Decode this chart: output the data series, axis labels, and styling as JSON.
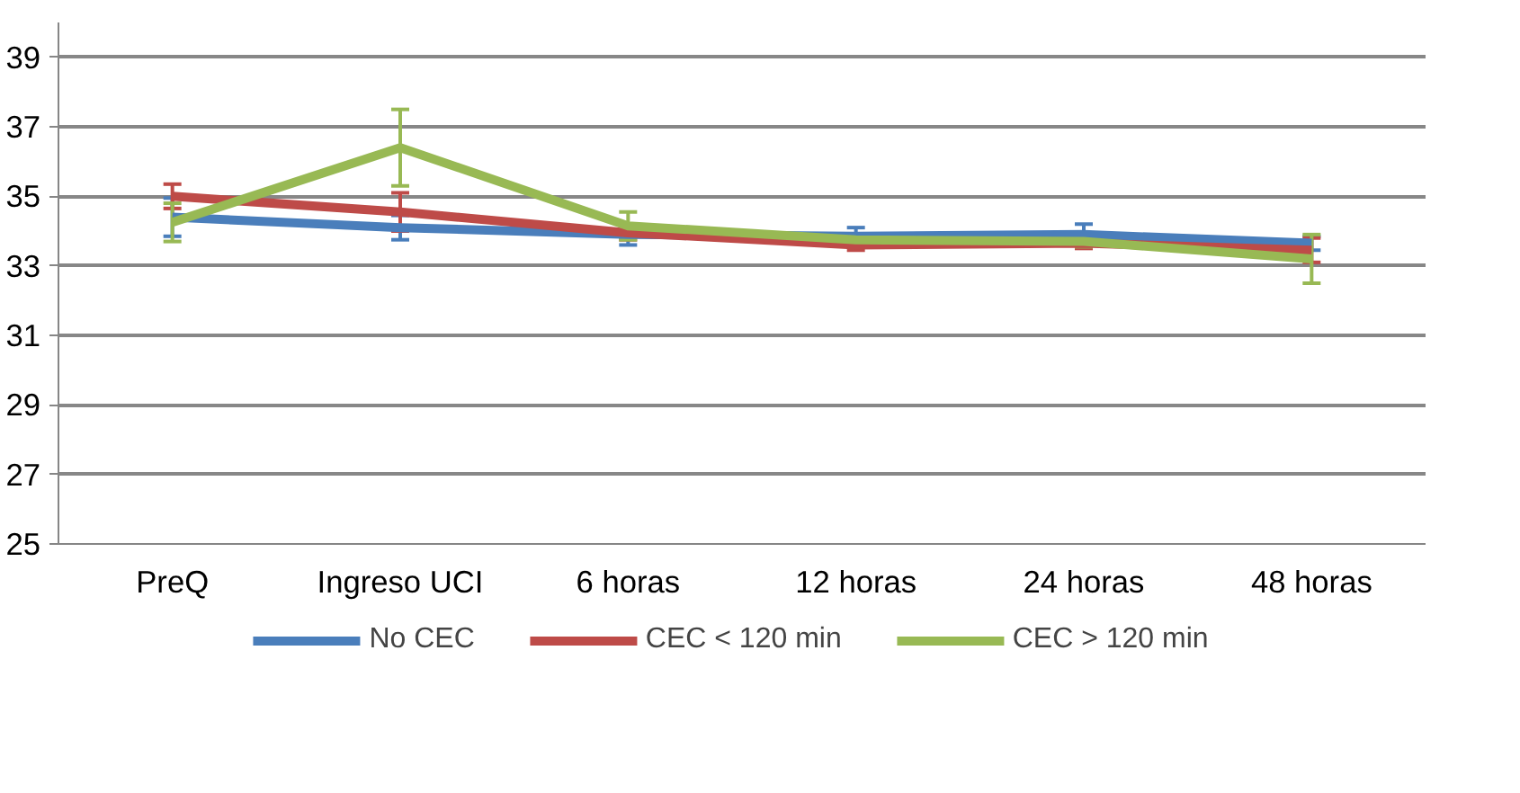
{
  "chart_data": {
    "type": "line",
    "categories": [
      "PreQ",
      "Ingreso UCI",
      "6 horas",
      "12 horas",
      "24 horas",
      "48 horas"
    ],
    "series": [
      {
        "name": "No CEC",
        "color": "#4a7ebb",
        "values": [
          34.4,
          34.1,
          33.9,
          33.85,
          33.9,
          33.65
        ],
        "errors": [
          0.55,
          0.35,
          0.3,
          0.25,
          0.3,
          0.2
        ]
      },
      {
        "name": "CEC < 120 min",
        "color": "#be4b48",
        "values": [
          35.0,
          34.55,
          33.95,
          33.6,
          33.65,
          33.45
        ],
        "errors": [
          0.35,
          0.55,
          0.2,
          0.15,
          0.15,
          0.35
        ]
      },
      {
        "name": "CEC > 120 min",
        "color": "#98b954",
        "values": [
          34.25,
          36.4,
          34.15,
          33.75,
          33.7,
          33.2
        ],
        "errors": [
          0.55,
          1.1,
          0.4,
          0.15,
          0.15,
          0.7
        ]
      }
    ],
    "ylim": [
      25,
      40
    ],
    "yticks": [
      25,
      27,
      29,
      31,
      33,
      35,
      37,
      39
    ],
    "grid": "y",
    "legend": "bottom",
    "marker": "none",
    "line_style": "solid"
  }
}
